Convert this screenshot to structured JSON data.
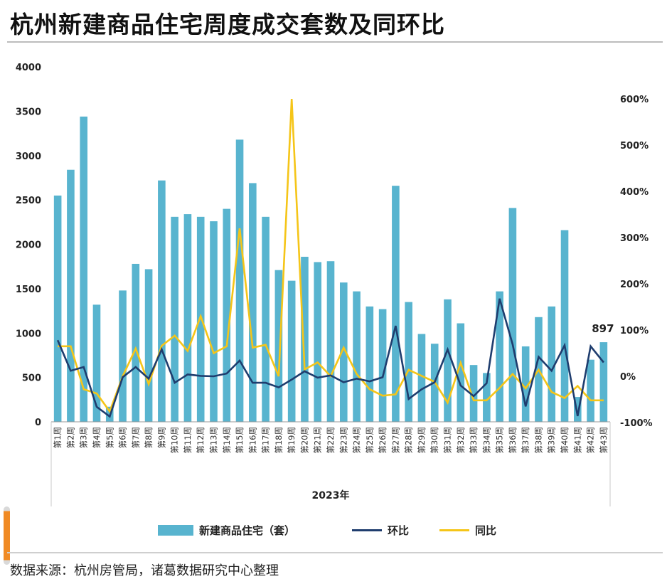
{
  "title": "杭州新建商品住宅周度成交套数及同环比",
  "source": "数据来源：杭州房管局，诸葛数据研究中心整理",
  "colors": {
    "bar": "#58b4cf",
    "mom": "#1f3d6e",
    "yoy": "#f5c518"
  },
  "chart_data": {
    "type": "bar",
    "title": "杭州新建商品住宅周度成交套数及同环比",
    "xlabel": "2023年",
    "categories": [
      "第1周",
      "第2周",
      "第3周",
      "第4周",
      "第5周",
      "第6周",
      "第7周",
      "第8周",
      "第9周",
      "第10周",
      "第11周",
      "第12周",
      "第13周",
      "第14周",
      "第15周",
      "第16周",
      "第17周",
      "第18周",
      "第19周",
      "第20周",
      "第21周",
      "第22周",
      "第23周",
      "第24周",
      "第25周",
      "第26周",
      "第27周",
      "第28周",
      "第29周",
      "第30周",
      "第31周",
      "第32周",
      "第33周",
      "第34周",
      "第35周",
      "第36周",
      "第37周",
      "第38周",
      "第39周",
      "第40周",
      "第41周",
      "第42周",
      "第43周"
    ],
    "y_left": {
      "ticks": [
        "0",
        "500",
        "1000",
        "1500",
        "2000",
        "2500",
        "3000",
        "3500",
        "4000"
      ],
      "range": [
        0,
        4000
      ]
    },
    "y_right": {
      "ticks": [
        "-100%",
        "0%",
        "100%",
        "200%",
        "300%",
        "400%",
        "500%",
        "600%"
      ],
      "range": [
        -100,
        600
      ]
    },
    "series": [
      {
        "name": "新建商品住宅（套）",
        "type": "bar",
        "axis": "left",
        "values": [
          2550,
          2840,
          3440,
          1320,
          170,
          1480,
          1780,
          1720,
          2720,
          2310,
          2340,
          2310,
          2260,
          2400,
          3180,
          2690,
          2310,
          1710,
          1590,
          1860,
          1800,
          1810,
          1570,
          1470,
          1300,
          1270,
          2660,
          1350,
          990,
          880,
          1380,
          1110,
          640,
          550,
          1470,
          2410,
          850,
          1180,
          1300,
          2160,
          280,
          700,
          897
        ],
        "labels": [
          {
            "index": 42,
            "text": "897"
          }
        ]
      },
      {
        "name": "环比",
        "type": "line",
        "axis": "right",
        "values": [
          78,
          12,
          20,
          -66,
          -87,
          -2,
          20,
          -5,
          58,
          -14,
          4,
          1,
          0,
          6,
          34,
          -14,
          -14,
          -24,
          -7,
          11,
          -3,
          2,
          -13,
          -5,
          -11,
          -2,
          109,
          -49,
          -28,
          -13,
          58,
          -20,
          -43,
          -15,
          168,
          69,
          -65,
          42,
          12,
          67,
          -86,
          65,
          30
        ]
      },
      {
        "name": "同比",
        "type": "line",
        "axis": "right",
        "values": [
          65,
          65,
          -28,
          -37,
          -76,
          0,
          60,
          -17,
          66,
          88,
          55,
          130,
          50,
          65,
          320,
          62,
          68,
          0,
          600,
          15,
          30,
          0,
          62,
          5,
          -28,
          -42,
          -39,
          14,
          1,
          -12,
          -57,
          29,
          -52,
          -52,
          -25,
          5,
          -26,
          14,
          -34,
          -47,
          -21,
          -52,
          -52
        ]
      }
    ],
    "legend": {
      "position": "bottom",
      "entries": [
        "新建商品住宅（套）",
        "环比",
        "同比"
      ]
    },
    "grid": false
  }
}
